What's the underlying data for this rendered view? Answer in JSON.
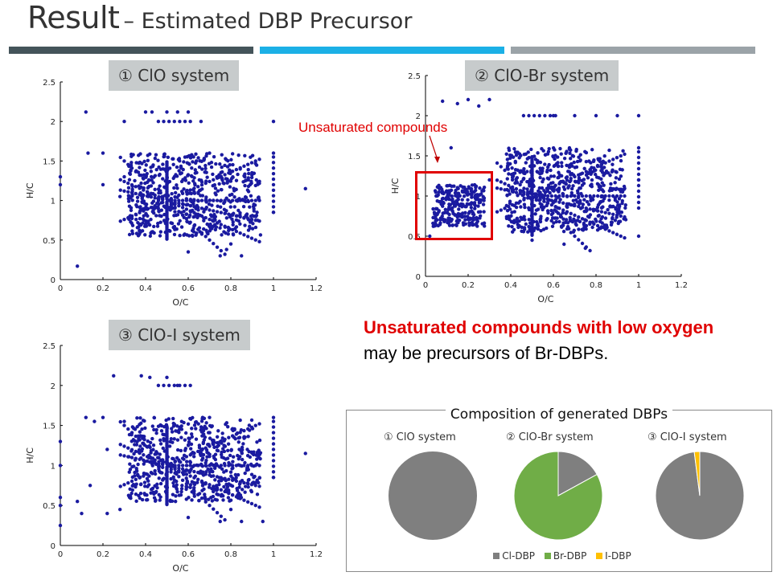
{
  "title": {
    "main": "Result",
    "sub": "– Estimated DBP Precursor"
  },
  "header_bar_colors": [
    "#44545a",
    "#1bb0e6",
    "#9ba3a8"
  ],
  "panels": {
    "p1_label": "① ClO system",
    "p2_label": "② ClO-Br system",
    "p3_label": "③ ClO-I system"
  },
  "axes": {
    "xlabel": "O/C",
    "ylabel": "H/C",
    "x_ticks": [
      "0",
      "0.2",
      "0.4",
      "0.6",
      "0.8",
      "1",
      "1.2"
    ],
    "y_ticks": [
      "0",
      "0.5",
      "1",
      "1.5",
      "2",
      "2.5"
    ],
    "point_color": "#1a1aa0"
  },
  "annotation": {
    "text": "Unsaturated compounds",
    "color": "#e00000"
  },
  "conclusion": {
    "line1": "Unsaturated compounds with low oxygen",
    "line2": "may be precursors of Br-DBPs."
  },
  "pie_section": {
    "title": "Composition of generated DBPs",
    "labels": [
      "① ClO system",
      "② ClO-Br system",
      "③ ClO-I system"
    ],
    "legend": [
      "Cl-DBP",
      "Br-DBP",
      "I-DBP"
    ],
    "colors": [
      "#7f7f7f",
      "#70ad47",
      "#ffc000"
    ]
  },
  "chart_data": [
    {
      "type": "scatter",
      "title": "① ClO system",
      "xlabel": "O/C",
      "ylabel": "H/C",
      "xlim": [
        0,
        1.2
      ],
      "ylim": [
        0,
        2.5
      ],
      "series": [
        {
          "points": [
            [
              0.08,
              0.17
            ],
            [
              0.12,
              2.12
            ],
            [
              0.13,
              1.6
            ],
            [
              0.2,
              1.6
            ],
            [
              0.2,
              1.2
            ],
            [
              0.28,
              1.05
            ],
            [
              0.3,
              1.3
            ],
            [
              0.3,
              2.0
            ],
            [
              0.4,
              0.7
            ],
            [
              0.4,
              2.12
            ],
            [
              0.43,
              2.12
            ],
            [
              0.5,
              2.12
            ],
            [
              0.55,
              2.12
            ],
            [
              0.6,
              2.12
            ],
            [
              0.6,
              0.35
            ],
            [
              0.62,
              0.55
            ],
            [
              0.66,
              2.0
            ],
            [
              0.7,
              1.6
            ],
            [
              0.75,
              0.3
            ],
            [
              0.78,
              0.38
            ],
            [
              0.8,
              0.45
            ],
            [
              0.85,
              0.3
            ],
            [
              1.0,
              2.0
            ],
            [
              1.0,
              1.6
            ],
            [
              1.0,
              0.85
            ],
            [
              1.15,
              1.15
            ],
            [
              0.0,
              1.3
            ],
            [
              0.0,
              1.2
            ]
          ]
        }
      ]
    },
    {
      "type": "scatter",
      "title": "② ClO-Br system",
      "xlabel": "O/C",
      "ylabel": "H/C",
      "xlim": [
        0,
        1.2
      ],
      "ylim": [
        0,
        2.5
      ],
      "series": [
        {
          "points": [
            [
              0.08,
              2.18
            ],
            [
              0.15,
              2.15
            ],
            [
              0.2,
              2.2
            ],
            [
              0.25,
              2.12
            ],
            [
              0.3,
              2.2
            ],
            [
              0.12,
              1.6
            ],
            [
              0.3,
              1.2
            ],
            [
              0.5,
              0.45
            ],
            [
              0.6,
              2.0
            ],
            [
              0.7,
              2.0
            ],
            [
              0.8,
              2.0
            ],
            [
              0.9,
              2.0
            ],
            [
              1.0,
              2.0
            ],
            [
              1.0,
              1.6
            ],
            [
              1.0,
              1.2
            ],
            [
              1.0,
              0.5
            ],
            [
              0.65,
              0.4
            ],
            [
              0.75,
              0.35
            ],
            [
              0.85,
              0.6
            ],
            [
              0.9,
              0.8
            ],
            [
              0.02,
              0.5
            ],
            [
              0.05,
              1.0
            ],
            [
              0.15,
              0.9
            ],
            [
              0.25,
              0.95
            ]
          ]
        }
      ]
    },
    {
      "type": "scatter",
      "title": "③ ClO-I system",
      "xlabel": "O/C",
      "ylabel": "H/C",
      "xlim": [
        0,
        1.2
      ],
      "ylim": [
        0,
        2.5
      ],
      "series": [
        {
          "points": [
            [
              0.0,
              0.25
            ],
            [
              0.0,
              0.5
            ],
            [
              0.0,
              0.6
            ],
            [
              0.0,
              1.0
            ],
            [
              0.0,
              1.3
            ],
            [
              0.08,
              0.55
            ],
            [
              0.1,
              0.4
            ],
            [
              0.12,
              1.6
            ],
            [
              0.14,
              0.75
            ],
            [
              0.16,
              1.55
            ],
            [
              0.2,
              1.6
            ],
            [
              0.22,
              0.4
            ],
            [
              0.22,
              1.2
            ],
            [
              0.25,
              2.12
            ],
            [
              0.28,
              0.45
            ],
            [
              0.3,
              1.55
            ],
            [
              0.38,
              2.12
            ],
            [
              0.42,
              2.1
            ],
            [
              0.5,
              2.1
            ],
            [
              0.55,
              2.0
            ],
            [
              0.6,
              0.35
            ],
            [
              0.7,
              1.6
            ],
            [
              0.75,
              0.3
            ],
            [
              0.8,
              0.45
            ],
            [
              0.85,
              0.3
            ],
            [
              0.95,
              0.3
            ],
            [
              1.0,
              1.6
            ],
            [
              1.0,
              0.85
            ],
            [
              1.15,
              1.15
            ]
          ]
        }
      ]
    },
    {
      "type": "pie",
      "title": "① ClO system",
      "categories": [
        "Cl-DBP",
        "Br-DBP",
        "I-DBP"
      ],
      "values": [
        100,
        0,
        0
      ]
    },
    {
      "type": "pie",
      "title": "② ClO-Br system",
      "categories": [
        "Cl-DBP",
        "Br-DBP",
        "I-DBP"
      ],
      "values": [
        17,
        83,
        0
      ]
    },
    {
      "type": "pie",
      "title": "③ ClO-I system",
      "categories": [
        "Cl-DBP",
        "Br-DBP",
        "I-DBP"
      ],
      "values": [
        98,
        0,
        2
      ]
    }
  ]
}
